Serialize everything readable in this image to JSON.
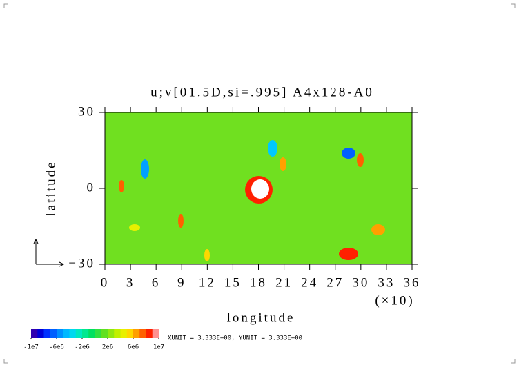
{
  "chart_data": {
    "type": "contour",
    "title": "u;v[01.5D,si=.995] A4x128-A0",
    "x_label": "longitude",
    "y_label": "latitude",
    "x_multiplier": "(×10)",
    "xlim": [
      0,
      36
    ],
    "xticks": [
      0,
      3,
      6,
      9,
      12,
      15,
      18,
      21,
      24,
      27,
      30,
      33,
      36
    ],
    "ylim": [
      -30,
      30
    ],
    "yticks": [
      {
        "value": -30,
        "label": "−30"
      },
      0,
      30
    ],
    "colorbar": {
      "lim": [
        -10000000,
        10000000
      ],
      "ticks": [
        {
          "value": -10000000,
          "label": "-1e7"
        },
        {
          "value": -6000000,
          "label": "-6e6"
        },
        {
          "value": -2000000,
          "label": "-2e6"
        },
        {
          "value": 2000000,
          "label": "2e6"
        },
        {
          "value": 6000000,
          "label": "6e6"
        },
        {
          "value": 10000000,
          "label": "1e7"
        }
      ],
      "colors": [
        "#3000b0",
        "#0000d8",
        "#0030ff",
        "#0060ff",
        "#0090ff",
        "#00b8ff",
        "#00d8f0",
        "#00e8c0",
        "#00e890",
        "#00e060",
        "#30e040",
        "#60e020",
        "#90e810",
        "#c0f000",
        "#e8f000",
        "#ffd800",
        "#ffa000",
        "#ff6000",
        "#ff2000",
        "#ff9090"
      ]
    },
    "unit_note": "XUNIT = 3.333E+00, YUNIT = 3.333E+00"
  }
}
